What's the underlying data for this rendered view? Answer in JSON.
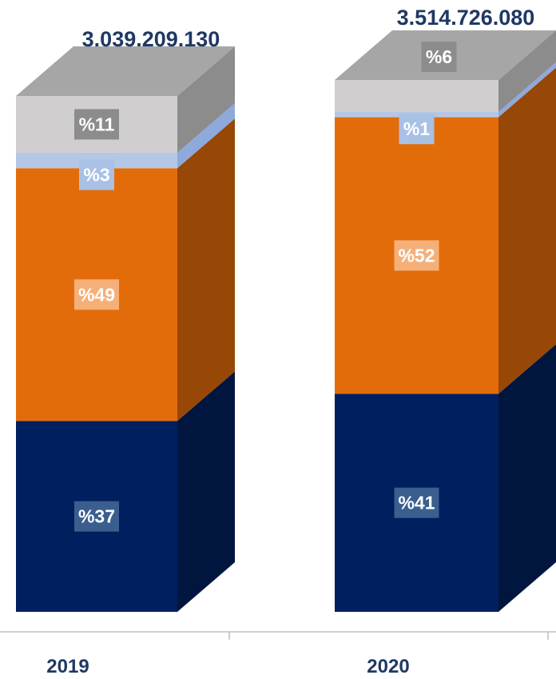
{
  "chart_data": {
    "type": "bar",
    "stacked": true,
    "style": "3d-stacked-column",
    "categories": [
      "2019",
      "2020"
    ],
    "totals": [
      "3.039.209.130",
      "3.514.726.080"
    ],
    "series": [
      {
        "color": "#001F5F",
        "side_color": "#00163F",
        "label_bg": "#3A5F8F",
        "values": [
          37,
          41
        ],
        "labels": [
          "%37",
          "%41"
        ]
      },
      {
        "color": "#E36C0A",
        "side_color": "#974706",
        "label_bg": "#F5B07A",
        "values": [
          49,
          52
        ],
        "labels": [
          "%49",
          "%52"
        ]
      },
      {
        "color": "#B4C7E7",
        "side_color": "#8EA9DB",
        "label_bg": "#A9C1E5",
        "values": [
          3,
          1
        ],
        "labels": [
          "%3",
          "%1"
        ]
      },
      {
        "color": "#D0CECE",
        "side_color": "#8C8C8C",
        "top_color": "#A6A6A6",
        "label_bg": "#8C8C8C",
        "values": [
          11,
          6
        ],
        "labels": [
          "%11",
          "%6"
        ]
      }
    ],
    "total_color": "#1F3864",
    "axis_label_color": "#1F3864",
    "legend": "none",
    "grid": false
  }
}
